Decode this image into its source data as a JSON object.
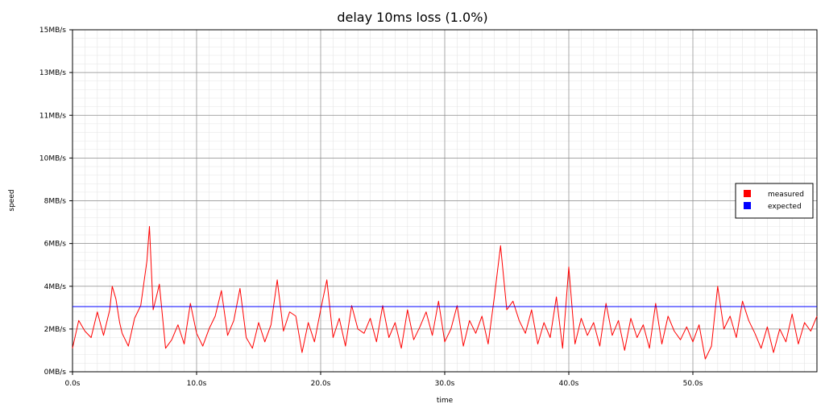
{
  "chart_data": {
    "type": "line",
    "title": "delay 10ms loss (1.0%)",
    "xlabel": "time",
    "ylabel": "speed",
    "xlim": [
      0,
      60
    ],
    "ylim": [
      0,
      16
    ],
    "x_ticks": [
      0,
      10,
      20,
      30,
      40,
      50
    ],
    "x_tick_labels": [
      "0.0s",
      "10.0s",
      "20.0s",
      "30.0s",
      "40.0s",
      "50.0s"
    ],
    "y_ticks": [
      0,
      2,
      4,
      6,
      8,
      10,
      12,
      14,
      16
    ],
    "y_tick_labels": [
      "0MB/s",
      "2MB/s",
      "4MB/s",
      "6MB/s",
      "8MB/s",
      "10MB/s",
      "11MB/s",
      "13MB/s",
      "15MB/s"
    ],
    "grid": true,
    "legend_position": "right",
    "series": [
      {
        "name": "measured",
        "color": "#ff0000",
        "x": [
          0,
          0.5,
          1,
          1.5,
          2,
          2.5,
          3,
          3.2,
          3.5,
          3.8,
          4,
          4.5,
          5,
          5.5,
          6,
          6.2,
          6.5,
          6.8,
          7,
          7.5,
          8,
          8.5,
          9,
          9.5,
          10,
          10.5,
          11,
          11.5,
          12,
          12.5,
          13,
          13.5,
          14,
          14.5,
          15,
          15.5,
          16,
          16.5,
          17,
          17.5,
          18,
          18.5,
          19,
          19.5,
          20,
          20.5,
          21,
          21.5,
          22,
          22.5,
          23,
          23.5,
          24,
          24.5,
          25,
          25.5,
          26,
          26.5,
          27,
          27.5,
          28,
          28.5,
          29,
          29.5,
          30,
          30.5,
          31,
          31.5,
          32,
          32.5,
          33,
          33.5,
          34,
          34.5,
          35,
          35.5,
          36,
          36.5,
          37,
          37.5,
          38,
          38.5,
          39,
          39.5,
          40,
          40.5,
          41,
          41.5,
          42,
          42.5,
          43,
          43.5,
          44,
          44.5,
          45,
          45.5,
          46,
          46.5,
          47,
          47.5,
          48,
          48.5,
          49,
          49.5,
          50,
          50.5,
          51,
          51.5,
          52,
          52.5,
          53,
          53.5,
          54,
          54.5,
          55,
          55.5,
          56,
          56.5,
          57,
          57.5,
          58,
          58.5,
          59,
          59.5,
          60
        ],
        "y": [
          1.1,
          2.4,
          1.9,
          1.6,
          2.8,
          1.7,
          2.9,
          4.0,
          3.4,
          2.3,
          1.8,
          1.2,
          2.5,
          3.1,
          5.2,
          6.8,
          2.9,
          3.6,
          4.1,
          1.1,
          1.5,
          2.2,
          1.3,
          3.2,
          1.8,
          1.2,
          2.0,
          2.6,
          3.8,
          1.7,
          2.4,
          3.9,
          1.6,
          1.1,
          2.3,
          1.4,
          2.2,
          4.3,
          1.9,
          2.8,
          2.6,
          0.9,
          2.3,
          1.4,
          2.9,
          4.3,
          1.6,
          2.5,
          1.2,
          3.1,
          2.0,
          1.8,
          2.5,
          1.4,
          3.1,
          1.6,
          2.3,
          1.1,
          2.9,
          1.5,
          2.1,
          2.8,
          1.7,
          3.3,
          1.4,
          2.0,
          3.1,
          1.2,
          2.4,
          1.8,
          2.6,
          1.3,
          3.5,
          5.9,
          2.9,
          3.3,
          2.4,
          1.8,
          2.9,
          1.3,
          2.3,
          1.6,
          3.5,
          1.1,
          4.9,
          1.3,
          2.5,
          1.7,
          2.3,
          1.2,
          3.2,
          1.7,
          2.4,
          1.0,
          2.5,
          1.6,
          2.2,
          1.1,
          3.2,
          1.3,
          2.6,
          1.9,
          1.5,
          2.1,
          1.4,
          2.2,
          0.6,
          1.2,
          4.0,
          2.0,
          2.6,
          1.6,
          3.3,
          2.4,
          1.8,
          1.1,
          2.1,
          0.9,
          2.0,
          1.4,
          2.7,
          1.3,
          2.3,
          1.9,
          2.6
        ]
      },
      {
        "name": "expected",
        "color": "#0000ff",
        "x": [
          0,
          60
        ],
        "y": [
          3.05,
          3.05
        ]
      }
    ]
  }
}
